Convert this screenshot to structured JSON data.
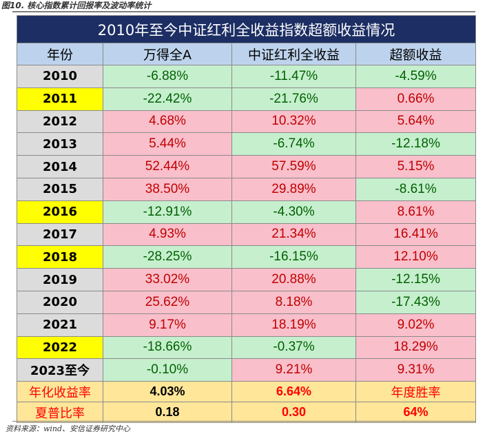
{
  "figure": {
    "caption": "图10. 核心指数累计回报率及波动率统计",
    "source": "资料来源：wind、安信证券研究中心"
  },
  "table": {
    "title": "2010年至今中证红利全收益指数超额收益情况",
    "headers": [
      "年份",
      "万得全A",
      "中证红利全收益",
      "超额收益"
    ],
    "rows": [
      {
        "year": "2010",
        "highlight": false,
        "wind_a": "-6.88%",
        "dividend": "-11.47%",
        "excess": "-4.59%"
      },
      {
        "year": "2011",
        "highlight": true,
        "wind_a": "-22.42%",
        "dividend": "-21.76%",
        "excess": "0.66%"
      },
      {
        "year": "2012",
        "highlight": false,
        "wind_a": "4.68%",
        "dividend": "10.32%",
        "excess": "5.64%"
      },
      {
        "year": "2013",
        "highlight": false,
        "wind_a": "5.44%",
        "dividend": "-6.74%",
        "excess": "-12.18%"
      },
      {
        "year": "2014",
        "highlight": false,
        "wind_a": "52.44%",
        "dividend": "57.59%",
        "excess": "5.15%"
      },
      {
        "year": "2015",
        "highlight": false,
        "wind_a": "38.50%",
        "dividend": "29.89%",
        "excess": "-8.61%"
      },
      {
        "year": "2016",
        "highlight": true,
        "wind_a": "-12.91%",
        "dividend": "-4.30%",
        "excess": "8.61%"
      },
      {
        "year": "2017",
        "highlight": false,
        "wind_a": "4.93%",
        "dividend": "21.34%",
        "excess": "16.41%"
      },
      {
        "year": "2018",
        "highlight": true,
        "wind_a": "-28.25%",
        "dividend": "-16.15%",
        "excess": "12.10%"
      },
      {
        "year": "2019",
        "highlight": false,
        "wind_a": "33.02%",
        "dividend": "20.88%",
        "excess": "-12.15%"
      },
      {
        "year": "2020",
        "highlight": false,
        "wind_a": "25.62%",
        "dividend": "8.18%",
        "excess": "-17.43%"
      },
      {
        "year": "2021",
        "highlight": false,
        "wind_a": "9.17%",
        "dividend": "18.19%",
        "excess": "9.02%"
      },
      {
        "year": "2022",
        "highlight": true,
        "wind_a": "-18.66%",
        "dividend": "-0.37%",
        "excess": "18.29%"
      },
      {
        "year": "2023至今",
        "highlight": false,
        "wind_a": "-0.10%",
        "dividend": "9.21%",
        "excess": "9.31%"
      }
    ],
    "summary": {
      "annual_return_label": "年化收益率",
      "annual_return_wind_a": "4.03%",
      "annual_return_dividend": "6.64%",
      "win_rate_label": "年度胜率",
      "sharpe_label": "夏普比率",
      "sharpe_wind_a": "0.18",
      "sharpe_dividend": "0.30",
      "win_rate_value": "64%"
    },
    "colors": {
      "title_bg": "#1c2e63",
      "header_bg": "#bdd3ed",
      "positive_bg": "#f9bfcb",
      "positive_text": "#c00000",
      "negative_bg": "#c6efce",
      "negative_text": "#006100",
      "year_highlight_bg": "#ffff00",
      "year_bg": "#dcdcdc",
      "summary_bg": "#ffe699"
    }
  }
}
